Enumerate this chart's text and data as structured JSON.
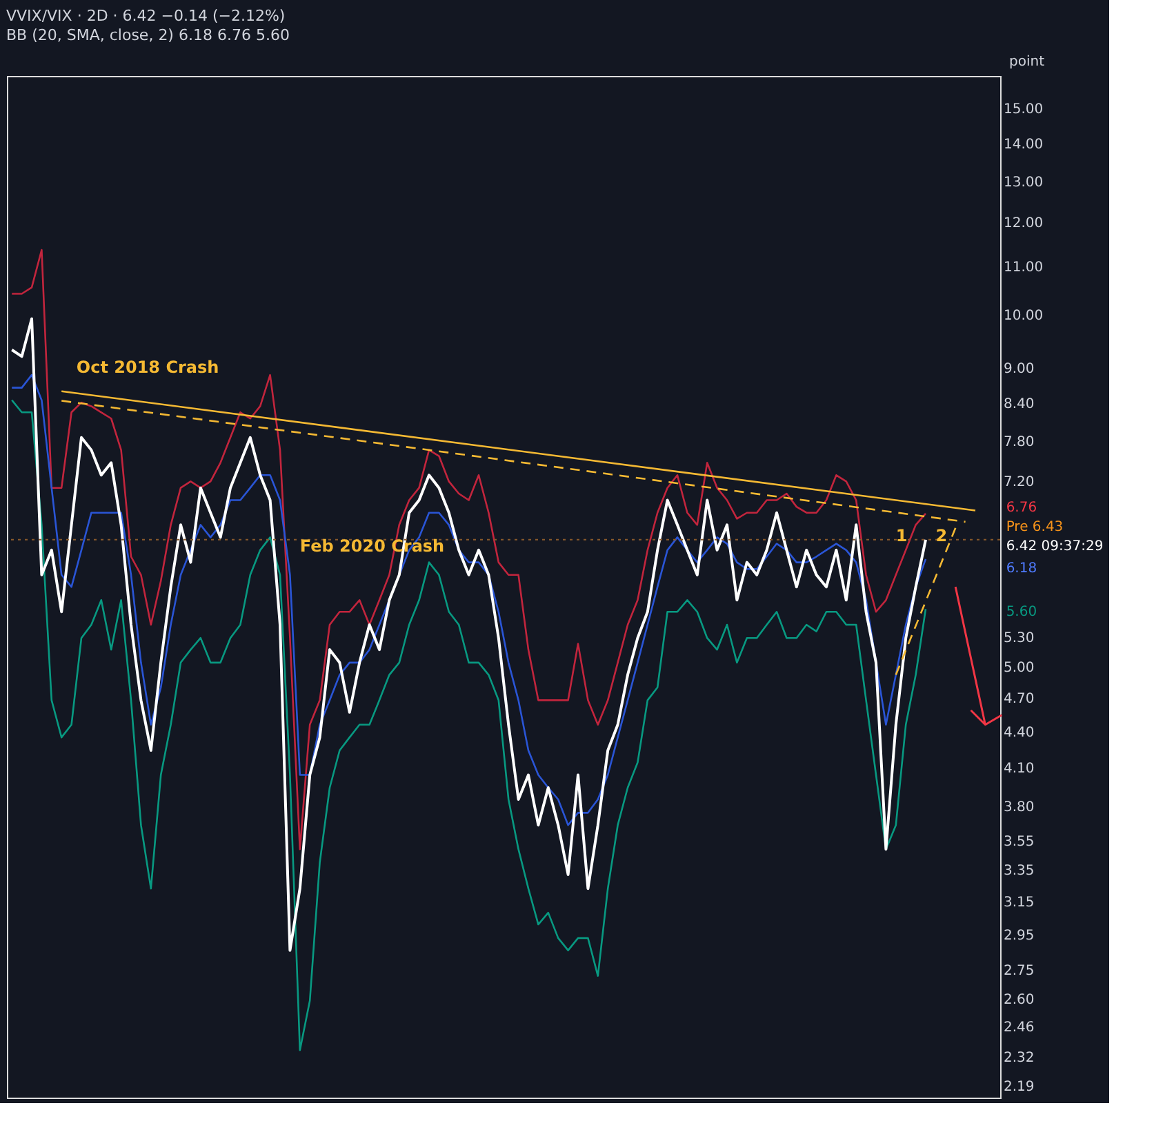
{
  "chart_data": {
    "type": "line",
    "title": "VVIX/VIX · 2D · 6.42 −0.14 (−2.12%)",
    "subtitle": "BB (20, SMA, close, 2) 6.18 6.76 5.60",
    "ylabel": "point",
    "categories": [
      null,
      null,
      null,
      null,
      null,
      null,
      null,
      null,
      null,
      null,
      null,
      null,
      null,
      null,
      null,
      null,
      null,
      null,
      null,
      null,
      null,
      null,
      null,
      null,
      null,
      null,
      null,
      null,
      null,
      null,
      null,
      null,
      null,
      null,
      null,
      null,
      null,
      null,
      null,
      null,
      null,
      null,
      null,
      null,
      null,
      null,
      null,
      null,
      null,
      null,
      null,
      null,
      null,
      null,
      null,
      null,
      null,
      null,
      null,
      null,
      null,
      null,
      null,
      null,
      null,
      null,
      null,
      null,
      null,
      null,
      null,
      null,
      null,
      null,
      null,
      null,
      null,
      null,
      null,
      null,
      null,
      null,
      null,
      null,
      null,
      null,
      null,
      null,
      null,
      null,
      null,
      null,
      null,
      null,
      null,
      null,
      null,
      null,
      null,
      null
    ],
    "log": "y",
    "ylim": [
      2.14,
      16.0
    ],
    "yticks": [
      {
        "value": 2.19,
        "label": "2.19"
      },
      {
        "value": 2.32,
        "label": "2.32"
      },
      {
        "value": 2.46,
        "label": "2.46"
      },
      {
        "value": 2.6,
        "label": "2.60"
      },
      {
        "value": 2.75,
        "label": "2.75"
      },
      {
        "value": 2.95,
        "label": "2.95"
      },
      {
        "value": 3.15,
        "label": "3.15"
      },
      {
        "value": 3.35,
        "label": "3.35"
      },
      {
        "value": 3.55,
        "label": "3.55"
      },
      {
        "value": 3.8,
        "label": "3.80"
      },
      {
        "value": 4.1,
        "label": "4.10"
      },
      {
        "value": 4.4,
        "label": "4.40"
      },
      {
        "value": 4.7,
        "label": "4.70"
      },
      {
        "value": 5.0,
        "label": "5.00"
      },
      {
        "value": 5.3,
        "label": "5.30"
      },
      {
        "value": 7.2,
        "label": "7.20"
      },
      {
        "value": 7.8,
        "label": "7.80"
      },
      {
        "value": 8.4,
        "label": "8.40"
      },
      {
        "value": 9.0,
        "label": "9.00"
      },
      {
        "value": 10.0,
        "label": "10.00"
      },
      {
        "value": 11.0,
        "label": "11.00"
      },
      {
        "value": 12.0,
        "label": "12.00"
      },
      {
        "value": 13.0,
        "label": "13.00"
      },
      {
        "value": 14.0,
        "label": "14.00"
      },
      {
        "value": 15.0,
        "label": "15.00"
      }
    ],
    "grid": false,
    "series": [
      {
        "color": "#c2253d",
        "values": [
          10.42,
          10.42,
          10.55,
          11.36,
          7.11,
          7.11,
          8.25,
          8.41,
          8.35,
          8.25,
          8.15,
          7.66,
          6.21,
          5.99,
          5.43,
          5.92,
          6.61,
          7.11,
          7.2,
          7.11,
          7.2,
          7.47,
          7.85,
          8.25,
          8.15,
          8.35,
          8.88,
          7.66,
          5.29,
          3.49,
          4.46,
          4.68,
          5.43,
          5.57,
          5.57,
          5.7,
          5.43,
          5.7,
          5.99,
          6.61,
          6.94,
          7.11,
          7.66,
          7.57,
          7.2,
          7.03,
          6.94,
          7.29,
          6.77,
          6.14,
          5.99,
          5.99,
          5.17,
          4.68,
          4.68,
          4.68,
          4.68,
          5.23,
          4.68,
          4.46,
          4.68,
          5.04,
          5.43,
          5.7,
          6.29,
          6.77,
          7.11,
          7.29,
          6.77,
          6.61,
          7.47,
          7.11,
          6.94,
          6.69,
          6.77,
          6.77,
          6.94,
          6.94,
          7.03,
          6.85,
          6.77,
          6.77,
          6.94,
          7.29,
          7.2,
          6.94,
          5.99,
          5.57,
          5.7,
          5.99,
          6.29,
          6.61,
          6.76,
          null,
          null,
          null,
          null,
          null,
          null,
          null
        ]
      },
      {
        "color": "#089981",
        "values": [
          8.45,
          8.25,
          8.25,
          6.61,
          4.68,
          4.35,
          4.46,
          5.29,
          5.43,
          5.7,
          5.17,
          5.7,
          4.68,
          3.66,
          3.23,
          4.04,
          4.46,
          5.04,
          5.17,
          5.29,
          5.04,
          5.04,
          5.29,
          5.43,
          5.99,
          6.29,
          6.45,
          5.99,
          4.04,
          2.35,
          2.59,
          3.4,
          3.94,
          4.24,
          4.35,
          4.46,
          4.46,
          4.68,
          4.92,
          5.04,
          5.43,
          5.7,
          6.14,
          5.99,
          5.57,
          5.43,
          5.04,
          5.04,
          4.92,
          4.68,
          3.85,
          3.49,
          3.23,
          3.01,
          3.08,
          2.93,
          2.86,
          2.93,
          2.93,
          2.72,
          3.23,
          3.66,
          3.94,
          4.14,
          4.68,
          4.8,
          5.57,
          5.57,
          5.7,
          5.57,
          5.29,
          5.17,
          5.43,
          5.04,
          5.29,
          5.29,
          5.43,
          5.57,
          5.29,
          5.29,
          5.43,
          5.36,
          5.57,
          5.57,
          5.43,
          5.43,
          4.68,
          4.04,
          3.49,
          3.66,
          4.46,
          4.92,
          5.6,
          null,
          null,
          null,
          null,
          null,
          null,
          null
        ]
      },
      {
        "color": "#2a55d6",
        "values": [
          8.66,
          8.66,
          8.88,
          8.45,
          7.11,
          5.99,
          5.85,
          6.29,
          6.77,
          6.77,
          6.77,
          6.77,
          5.99,
          5.04,
          4.46,
          4.8,
          5.43,
          5.99,
          6.29,
          6.61,
          6.45,
          6.61,
          6.94,
          6.94,
          7.11,
          7.29,
          7.29,
          6.94,
          5.99,
          4.04,
          4.04,
          4.46,
          4.68,
          4.92,
          5.04,
          5.04,
          5.17,
          5.43,
          5.7,
          5.99,
          6.29,
          6.45,
          6.77,
          6.77,
          6.61,
          6.29,
          6.14,
          6.14,
          5.99,
          5.57,
          5.04,
          4.68,
          4.24,
          4.04,
          3.94,
          3.85,
          3.66,
          3.75,
          3.75,
          3.85,
          4.04,
          4.35,
          4.68,
          5.04,
          5.43,
          5.85,
          6.29,
          6.45,
          6.29,
          6.14,
          6.29,
          6.45,
          6.37,
          6.14,
          6.06,
          6.06,
          6.21,
          6.37,
          6.29,
          6.14,
          6.14,
          6.21,
          6.29,
          6.37,
          6.29,
          6.14,
          5.7,
          5.04,
          4.46,
          4.92,
          5.43,
          5.85,
          6.18,
          null,
          null,
          null,
          null,
          null,
          null,
          null
        ]
      },
      {
        "color": "#ffffff",
        "values": [
          9.33,
          9.21,
          9.92,
          5.99,
          6.29,
          5.57,
          6.61,
          7.85,
          7.66,
          7.29,
          7.47,
          6.61,
          5.43,
          4.68,
          4.24,
          5.04,
          5.85,
          6.61,
          6.14,
          7.11,
          6.77,
          6.45,
          7.11,
          7.47,
          7.85,
          7.29,
          6.94,
          5.43,
          2.86,
          3.23,
          4.04,
          4.35,
          5.17,
          5.04,
          4.57,
          5.04,
          5.43,
          5.17,
          5.7,
          5.99,
          6.77,
          6.94,
          7.29,
          7.11,
          6.77,
          6.29,
          5.99,
          6.29,
          5.99,
          5.29,
          4.46,
          3.85,
          4.04,
          3.66,
          3.94,
          3.66,
          3.32,
          4.04,
          3.23,
          3.66,
          4.24,
          4.46,
          4.92,
          5.29,
          5.57,
          6.29,
          6.94,
          6.61,
          6.29,
          5.99,
          6.94,
          6.29,
          6.61,
          5.7,
          6.14,
          5.99,
          6.29,
          6.77,
          6.29,
          5.85,
          6.29,
          5.99,
          5.85,
          6.29,
          5.7,
          6.61,
          5.57,
          5.04,
          3.49,
          4.46,
          5.29,
          5.85,
          6.42,
          null,
          null,
          null,
          null,
          null,
          null,
          null
        ]
      },
      {
        "type": "line",
        "color": "#f5b933",
        "line_style": "solid",
        "values": [
          null,
          null,
          null,
          null,
          null,
          8.6,
          null,
          null,
          null,
          null,
          null,
          null,
          null,
          null,
          null,
          null,
          null,
          null,
          null,
          null,
          null,
          null,
          null,
          null,
          null,
          null,
          null,
          null,
          null,
          null,
          null,
          null,
          null,
          null,
          null,
          null,
          null,
          null,
          null,
          null,
          null,
          null,
          null,
          null,
          null,
          null,
          null,
          null,
          null,
          null,
          null,
          null,
          null,
          null,
          null,
          null,
          null,
          null,
          null,
          null,
          null,
          null,
          null,
          null,
          null,
          null,
          null,
          null,
          null,
          null,
          null,
          null,
          null,
          null,
          null,
          null,
          null,
          null,
          null,
          null,
          null,
          null,
          null,
          null,
          null,
          null,
          null,
          null,
          null,
          null,
          null,
          null,
          null,
          null,
          null,
          null,
          null,
          6.8,
          null,
          null
        ]
      },
      {
        "type": "line",
        "color": "#f5b933",
        "line_style": "dashed",
        "values": [
          null,
          null,
          null,
          null,
          null,
          8.44,
          null,
          null,
          null,
          null,
          null,
          null,
          null,
          null,
          null,
          null,
          null,
          null,
          null,
          null,
          null,
          null,
          null,
          null,
          null,
          null,
          null,
          null,
          null,
          null,
          null,
          null,
          null,
          null,
          null,
          null,
          null,
          null,
          null,
          null,
          null,
          null,
          null,
          null,
          null,
          null,
          null,
          null,
          null,
          null,
          null,
          null,
          null,
          null,
          null,
          null,
          null,
          null,
          null,
          null,
          null,
          null,
          null,
          null,
          null,
          null,
          null,
          null,
          null,
          null,
          null,
          null,
          null,
          null,
          null,
          null,
          null,
          null,
          null,
          null,
          null,
          null,
          null,
          null,
          null,
          null,
          null,
          null,
          null,
          null,
          null,
          null,
          null,
          null,
          null,
          null,
          6.65,
          null,
          null,
          null
        ]
      },
      {
        "type": "line",
        "color": "#f5b933",
        "line_style": "dashed",
        "values": [
          null,
          null,
          null,
          null,
          null,
          null,
          null,
          null,
          null,
          null,
          null,
          null,
          null,
          null,
          null,
          null,
          null,
          null,
          null,
          null,
          null,
          null,
          null,
          null,
          null,
          null,
          null,
          null,
          null,
          null,
          null,
          null,
          null,
          null,
          null,
          null,
          null,
          null,
          null,
          null,
          null,
          null,
          null,
          null,
          null,
          null,
          null,
          null,
          null,
          null,
          null,
          null,
          null,
          null,
          null,
          null,
          null,
          null,
          null,
          null,
          null,
          null,
          null,
          null,
          null,
          null,
          null,
          null,
          null,
          null,
          null,
          null,
          null,
          null,
          null,
          null,
          null,
          null,
          null,
          null,
          null,
          null,
          null,
          null,
          null,
          null,
          null,
          null,
          null,
          4.92,
          null,
          null,
          null,
          null,
          null,
          6.57,
          null,
          null,
          null,
          null
        ]
      }
    ],
    "ref_lines": [
      {
        "axis": "y",
        "value": 6.42,
        "color": "#8a5a2b",
        "line_style": "dotted"
      }
    ],
    "annotations": [
      "Oct 2018 Crash",
      "Feb 2020 Crash",
      "1",
      "2",
      "6.76",
      "Pre 6.43",
      "6.42 09:37:29",
      "6.18",
      "5.60"
    ]
  }
}
